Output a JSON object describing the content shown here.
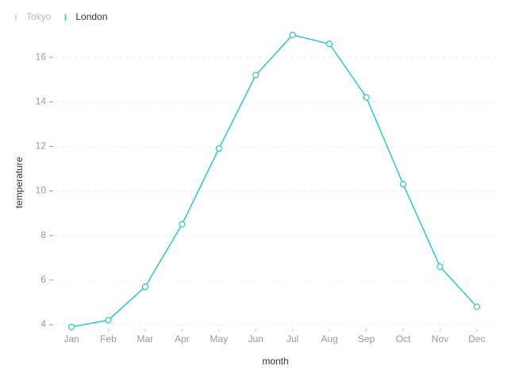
{
  "chart_data": {
    "type": "line",
    "x_label": "month",
    "y_label": "temperature",
    "categories": [
      "Jan",
      "Feb",
      "Mar",
      "Apr",
      "May",
      "Jun",
      "Jul",
      "Aug",
      "Sep",
      "Oct",
      "Nov",
      "Dec"
    ],
    "series": [
      {
        "name": "Tokyo",
        "color": "#cccccc",
        "visible": false,
        "values": [
          null,
          null,
          null,
          null,
          null,
          null,
          null,
          null,
          null,
          null,
          null,
          null
        ]
      },
      {
        "name": "London",
        "color": "#2ec7c9",
        "visible": true,
        "values": [
          3.9,
          4.2,
          5.7,
          8.5,
          11.9,
          15.2,
          17.0,
          16.6,
          14.2,
          10.3,
          6.6,
          4.8
        ]
      }
    ],
    "ylim": [
      3.75,
      17.25
    ],
    "yticks": [
      4,
      6,
      8,
      10,
      12,
      14,
      16
    ],
    "grid": true,
    "legend": "top-left"
  }
}
